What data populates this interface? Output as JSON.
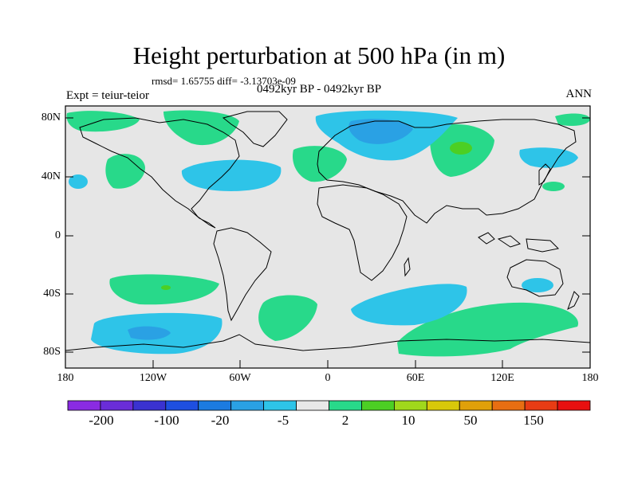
{
  "title": "Height perturbation at 500 hPa (in m)",
  "stats": "rmsd= 1.65755 diff= -3.13703e-09",
  "experiment": "Expt = teiur-teior",
  "period": "0492kyr BP - 0492kyr BP",
  "season": "ANN",
  "axes": {
    "lat_ticks": [
      "80N",
      "40N",
      "0",
      "40S",
      "80S"
    ],
    "lon_ticks": [
      "180",
      "120W",
      "60W",
      "0",
      "60E",
      "120E",
      "180"
    ]
  },
  "colorbar": {
    "colors": [
      "#8a2be2",
      "#6a2dd8",
      "#3a32d0",
      "#1e4fe0",
      "#1c7be0",
      "#2aa1e4",
      "#2ec4e8",
      "#e8e8e8",
      "#28d98a",
      "#4ccf24",
      "#a0d81c",
      "#d8c80a",
      "#e0a00a",
      "#e86e12",
      "#e83c14",
      "#e81010"
    ],
    "labels": [
      "-200",
      "-100",
      "-20",
      "-5",
      "2",
      "10",
      "50",
      "150"
    ]
  },
  "colors": {
    "land_bg": "#e6e6e6",
    "positive": "#28d98a",
    "positive_strong": "#4ccf24",
    "negative": "#2ec4e8",
    "negative_strong": "#2aa1e4"
  }
}
